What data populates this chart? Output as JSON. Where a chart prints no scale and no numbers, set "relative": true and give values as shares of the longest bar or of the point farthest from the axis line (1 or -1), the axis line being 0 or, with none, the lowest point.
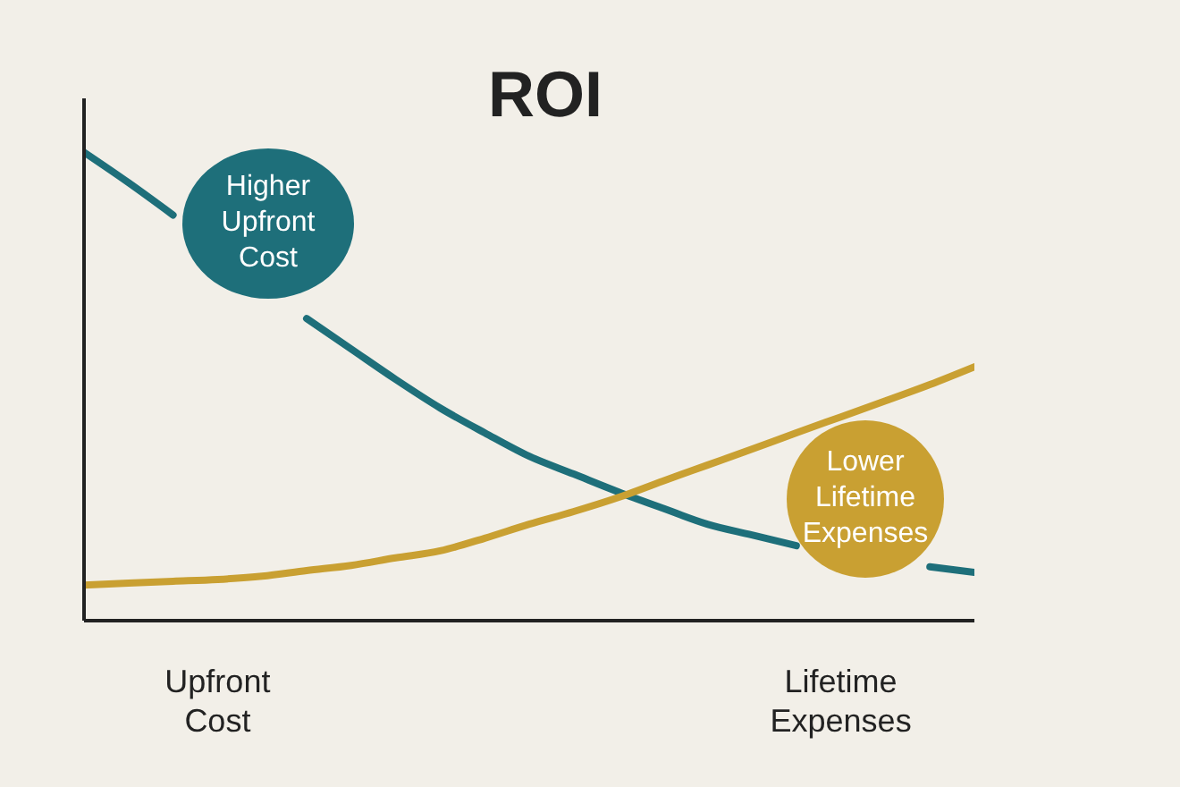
{
  "chart_data": {
    "type": "line",
    "title": "ROI",
    "relative": true,
    "categories": [
      null,
      null,
      null,
      "Upfront Cost",
      null,
      null,
      null,
      null,
      null,
      null,
      null,
      null,
      null,
      null,
      null,
      null,
      null,
      "Lifetime Expenses",
      null,
      null,
      null
    ],
    "series": [
      {
        "color": "#1e6f7a",
        "values": [
          1,
          0.935,
          0.866,
          null,
          null,
          0.645,
          0.58,
          0.515,
          0.454,
          0.401,
          0.351,
          0.313,
          0.275,
          0.24,
          0.206,
          0.183,
          0.16,
          null,
          null,
          0.115,
          0.103
        ]
      },
      {
        "color": "#c9a032",
        "values": [
          0.076,
          0.08,
          0.084,
          0.088,
          0.095,
          0.107,
          0.118,
          0.134,
          0.149,
          0.176,
          0.206,
          0.233,
          0.263,
          0.298,
          0.332,
          0.366,
          0.401,
          0.435,
          0.469,
          0.504,
          0.542
        ]
      }
    ],
    "annotations": [
      "Higher Upfront Cost",
      "Lower Lifetime Expenses"
    ],
    "grid": false,
    "legend": false,
    "marker": "none",
    "line_style": "solid"
  }
}
